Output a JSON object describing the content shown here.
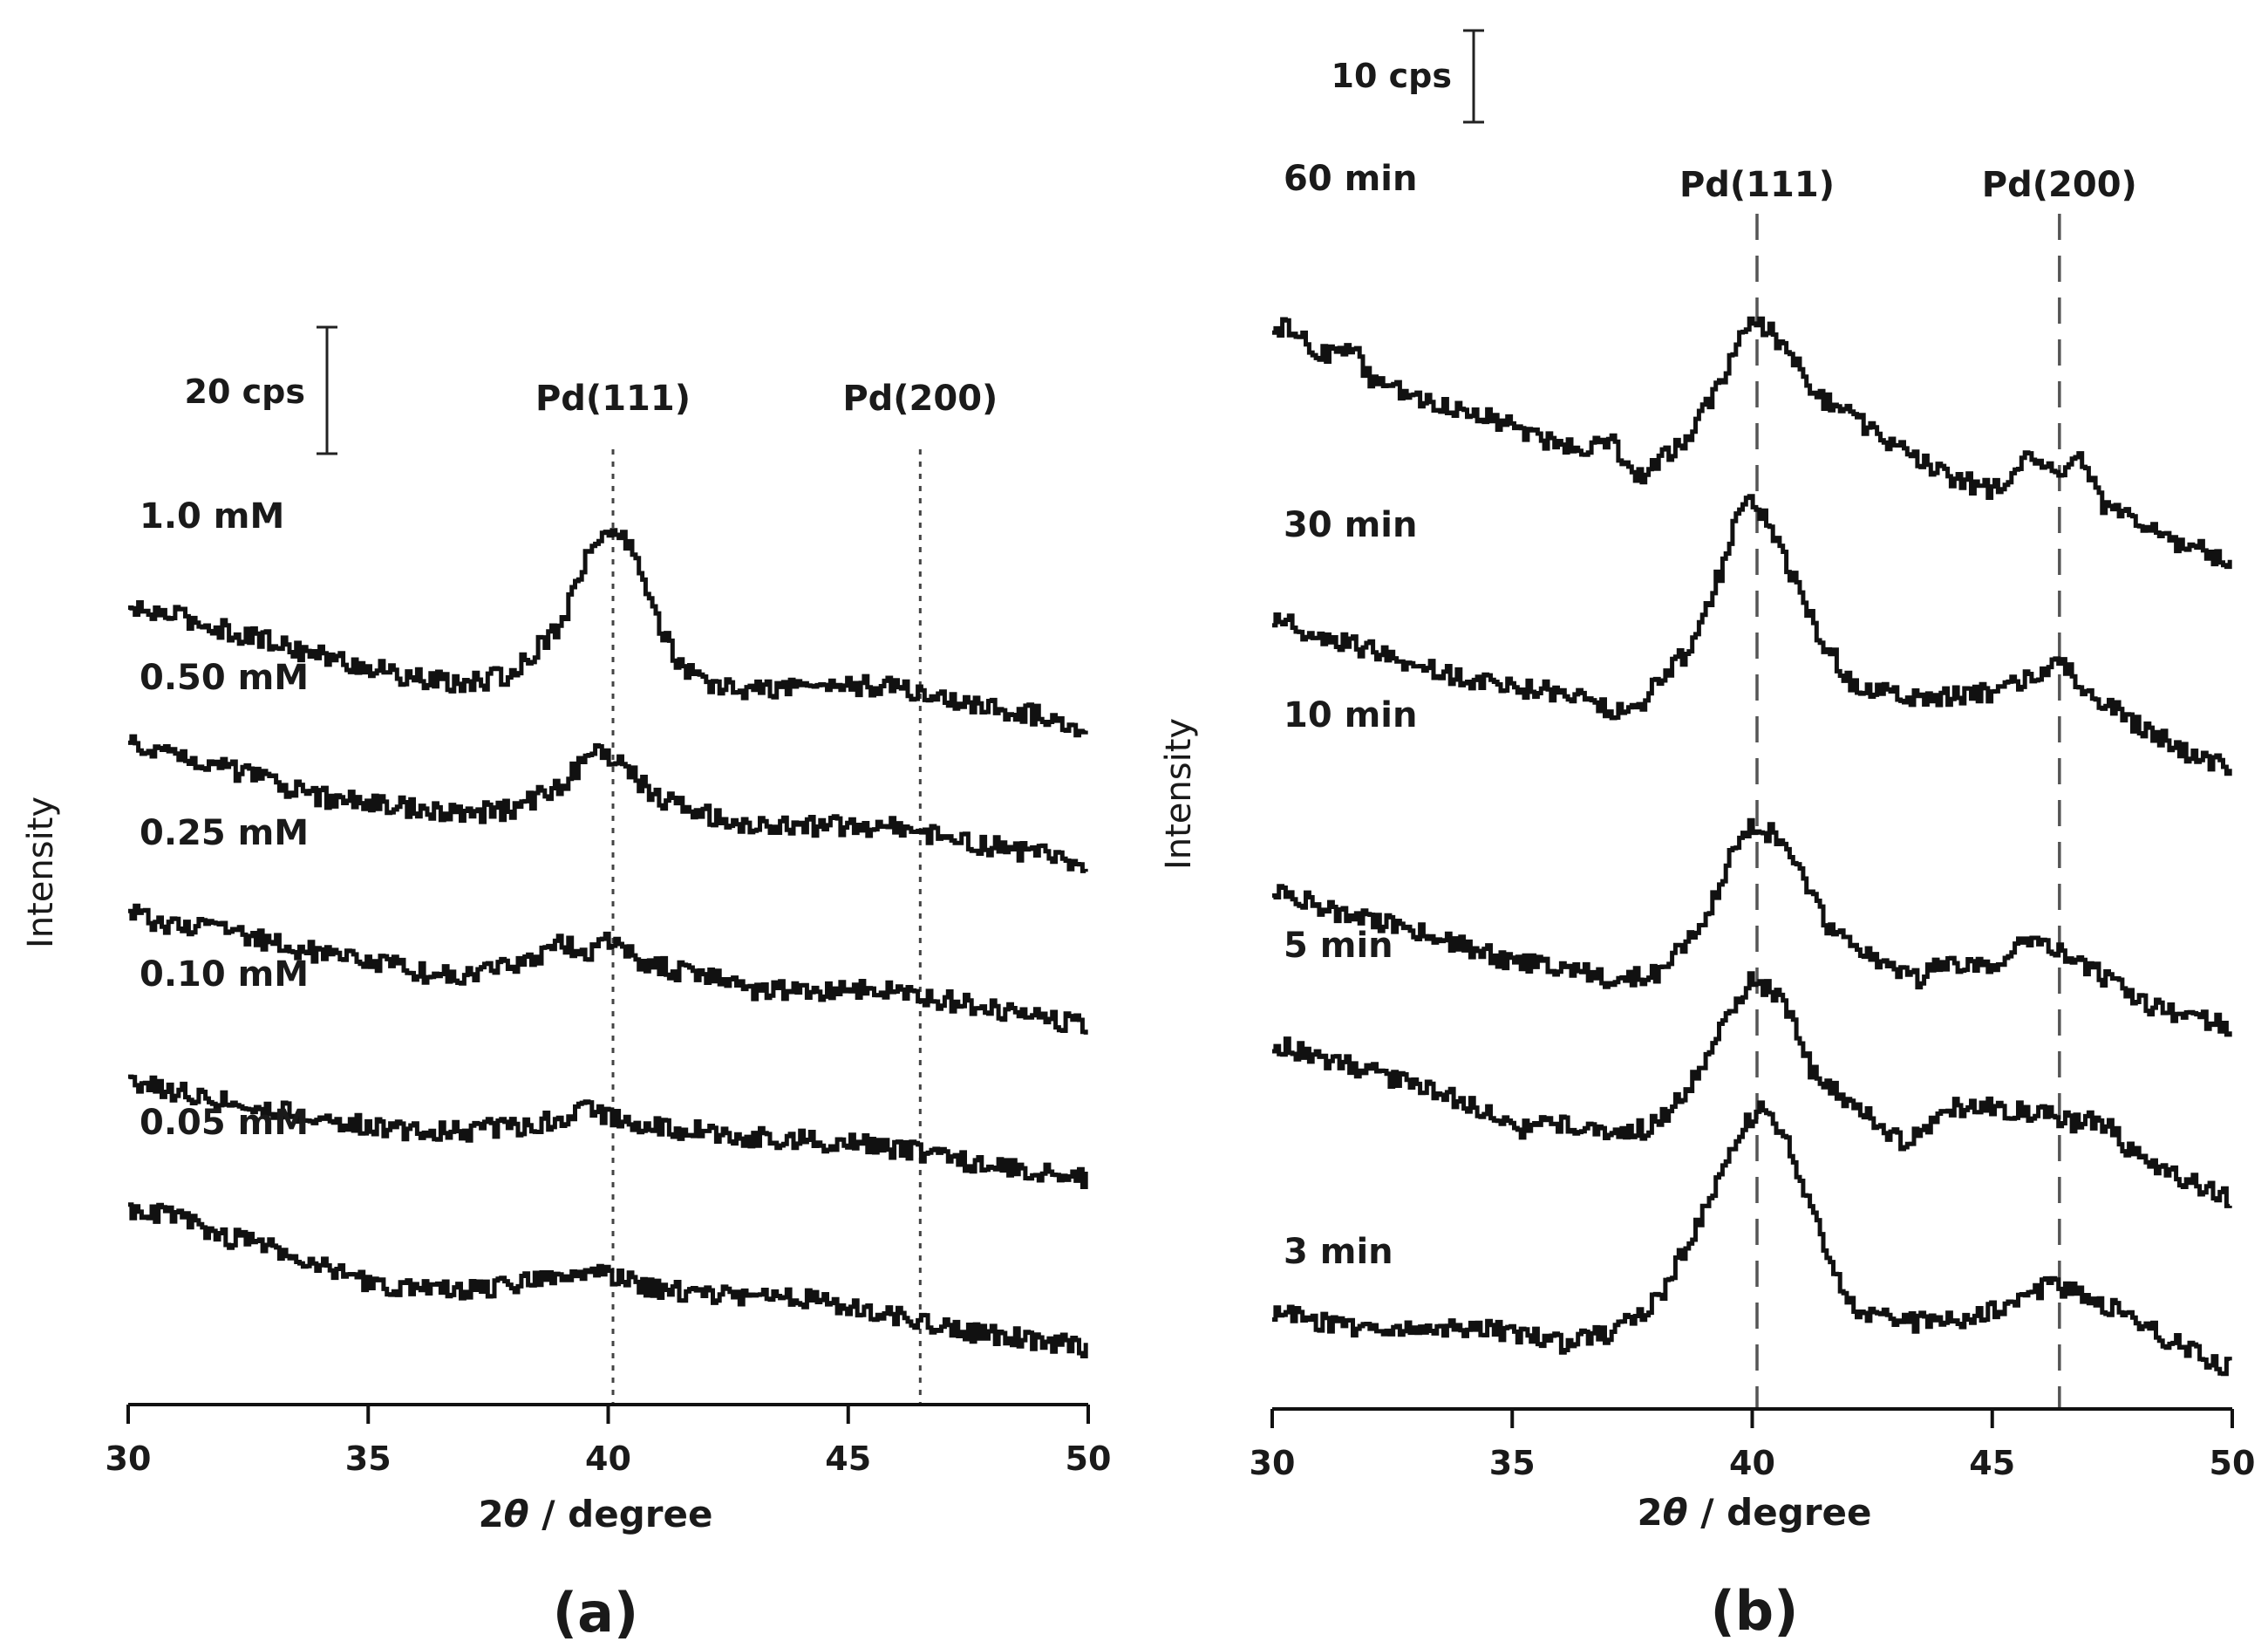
{
  "chart_data": [
    {
      "type": "line",
      "panel": "(a)",
      "xlabel_prefix": "2",
      "xlabel_theta": "θ",
      "xlabel_suffix": " / degree",
      "ylabel": "Intensity",
      "xlim": [
        30,
        50
      ],
      "xticks": [
        30,
        35,
        40,
        45,
        50
      ],
      "scale_bar": "20 cps",
      "reference_lines": [
        {
          "label": "Pd(111)",
          "x": 40.1,
          "style": "dotted"
        },
        {
          "label": "Pd(200)",
          "x": 46.5,
          "style": "dotted"
        }
      ],
      "series": [
        {
          "name": "1.0 mM",
          "baseline": 0,
          "points": [
            [
              30,
              42
            ],
            [
              31,
              40
            ],
            [
              32,
              35
            ],
            [
              33,
              31
            ],
            [
              34,
              26
            ],
            [
              35,
              22
            ],
            [
              36,
              18
            ],
            [
              37,
              16
            ],
            [
              38,
              20
            ],
            [
              39,
              38
            ],
            [
              39.5,
              60
            ],
            [
              40.1,
              71
            ],
            [
              40.6,
              60
            ],
            [
              41,
              38
            ],
            [
              41.5,
              22
            ],
            [
              42,
              16
            ],
            [
              43,
              14
            ],
            [
              44,
              16
            ],
            [
              45,
              16
            ],
            [
              46,
              15
            ],
            [
              47,
              11
            ],
            [
              48,
              8
            ],
            [
              49,
              5
            ],
            [
              50,
              1
            ]
          ]
        },
        {
          "name": "0.50 mM",
          "baseline": 1,
          "points": [
            [
              30,
              48
            ],
            [
              31,
              46
            ],
            [
              32,
              40
            ],
            [
              33,
              35
            ],
            [
              34,
              30
            ],
            [
              35,
              28
            ],
            [
              36,
              26
            ],
            [
              37,
              24
            ],
            [
              38,
              26
            ],
            [
              39,
              34
            ],
            [
              39.7,
              48
            ],
            [
              40.3,
              40
            ],
            [
              41,
              30
            ],
            [
              42,
              24
            ],
            [
              43,
              20
            ],
            [
              44,
              20
            ],
            [
              45,
              20
            ],
            [
              46,
              20
            ],
            [
              47,
              16
            ],
            [
              48,
              13
            ],
            [
              49,
              10
            ],
            [
              50,
              6
            ]
          ]
        },
        {
          "name": "0.25 mM",
          "baseline": 2,
          "points": [
            [
              30,
              44
            ],
            [
              31,
              40
            ],
            [
              32,
              38
            ],
            [
              33,
              34
            ],
            [
              34,
              30
            ],
            [
              35,
              28
            ],
            [
              36,
              24
            ],
            [
              37,
              22
            ],
            [
              38,
              26
            ],
            [
              39,
              34
            ],
            [
              39.5,
              30
            ],
            [
              40,
              36
            ],
            [
              40.6,
              28
            ],
            [
              41,
              26
            ],
            [
              42,
              22
            ],
            [
              43,
              18
            ],
            [
              44,
              17
            ],
            [
              45,
              18
            ],
            [
              46,
              17
            ],
            [
              47,
              14
            ],
            [
              48,
              11
            ],
            [
              49,
              8
            ],
            [
              50,
              5
            ]
          ]
        },
        {
          "name": "0.10 mM",
          "baseline": 3,
          "points": [
            [
              30,
              40
            ],
            [
              31,
              36
            ],
            [
              32,
              33
            ],
            [
              33,
              30
            ],
            [
              34,
              26
            ],
            [
              35,
              24
            ],
            [
              36,
              22
            ],
            [
              37,
              22
            ],
            [
              38,
              24
            ],
            [
              39,
              26
            ],
            [
              39.6,
              30
            ],
            [
              40.2,
              26
            ],
            [
              41,
              24
            ],
            [
              42,
              22
            ],
            [
              43,
              20
            ],
            [
              44,
              19
            ],
            [
              45,
              18
            ],
            [
              46,
              16
            ],
            [
              47,
              13
            ],
            [
              48,
              10
            ],
            [
              49,
              8
            ],
            [
              50,
              5
            ]
          ]
        },
        {
          "name": "0.05 mM",
          "baseline": 4,
          "points": [
            [
              30,
              50
            ],
            [
              31,
              47
            ],
            [
              32,
              40
            ],
            [
              33,
              36
            ],
            [
              34,
              30
            ],
            [
              35,
              24
            ],
            [
              36,
              22
            ],
            [
              37,
              21
            ],
            [
              38,
              24
            ],
            [
              39,
              28
            ],
            [
              40,
              27
            ],
            [
              41,
              22
            ],
            [
              42,
              20
            ],
            [
              43,
              20
            ],
            [
              44,
              19
            ],
            [
              45,
              16
            ],
            [
              46,
              12
            ],
            [
              47,
              8
            ],
            [
              48,
              6
            ],
            [
              49,
              4
            ],
            [
              50,
              1
            ]
          ]
        }
      ]
    },
    {
      "type": "line",
      "panel": "(b)",
      "xlabel_prefix": "2",
      "xlabel_theta": "θ",
      "xlabel_suffix": " / degree",
      "ylabel": "Intensity",
      "xlim": [
        30,
        50
      ],
      "xticks": [
        30,
        35,
        40,
        45,
        50
      ],
      "scale_bar": "10 cps",
      "reference_lines": [
        {
          "label": "Pd(111)",
          "x": 40.1,
          "style": "dashed"
        },
        {
          "label": "Pd(200)",
          "x": 46.4,
          "style": "dashed"
        }
      ],
      "series": [
        {
          "name": "60 min",
          "baseline": 0,
          "points": [
            [
              30,
              112
            ],
            [
              30.5,
              108
            ],
            [
              31,
              100
            ],
            [
              31.6,
              104
            ],
            [
              32,
              92
            ],
            [
              33,
              84
            ],
            [
              34,
              80
            ],
            [
              35,
              74
            ],
            [
              35.8,
              68
            ],
            [
              36.5,
              66
            ],
            [
              37,
              70
            ],
            [
              37.5,
              54
            ],
            [
              38,
              60
            ],
            [
              38.7,
              72
            ],
            [
              39.3,
              90
            ],
            [
              39.8,
              112
            ],
            [
              40.3,
              110
            ],
            [
              40.8,
              100
            ],
            [
              41.3,
              86
            ],
            [
              42,
              78
            ],
            [
              43,
              66
            ],
            [
              44,
              56
            ],
            [
              45,
              50
            ],
            [
              45.6,
              62
            ],
            [
              46.3,
              56
            ],
            [
              46.8,
              62
            ],
            [
              47.3,
              44
            ],
            [
              48,
              38
            ],
            [
              49,
              30
            ],
            [
              50,
              24
            ]
          ]
        },
        {
          "name": "30 min",
          "baseline": 1,
          "points": [
            [
              30,
              64
            ],
            [
              31,
              56
            ],
            [
              32,
              52
            ],
            [
              33,
              46
            ],
            [
              34,
              40
            ],
            [
              35,
              38
            ],
            [
              36,
              36
            ],
            [
              37,
              30
            ],
            [
              37.5,
              28
            ],
            [
              38,
              40
            ],
            [
              38.7,
              52
            ],
            [
              39.3,
              80
            ],
            [
              39.8,
              108
            ],
            [
              40.3,
              100
            ],
            [
              40.8,
              80
            ],
            [
              41.4,
              56
            ],
            [
              42,
              40
            ],
            [
              43,
              34
            ],
            [
              44,
              34
            ],
            [
              45,
              36
            ],
            [
              45.8,
              42
            ],
            [
              46.4,
              46
            ],
            [
              47,
              36
            ],
            [
              48,
              24
            ],
            [
              49,
              14
            ],
            [
              50,
              8
            ]
          ]
        },
        {
          "name": "10 min",
          "baseline": 2,
          "points": [
            [
              30,
              64
            ],
            [
              31,
              56
            ],
            [
              32,
              52
            ],
            [
              33,
              48
            ],
            [
              34,
              42
            ],
            [
              35,
              36
            ],
            [
              36,
              34
            ],
            [
              37,
              30
            ],
            [
              38,
              32
            ],
            [
              39,
              52
            ],
            [
              39.8,
              86
            ],
            [
              40.4,
              84
            ],
            [
              41,
              70
            ],
            [
              41.6,
              48
            ],
            [
              42.5,
              38
            ],
            [
              43.4,
              30
            ],
            [
              44,
              36
            ],
            [
              45,
              36
            ],
            [
              45.8,
              44
            ],
            [
              46.4,
              40
            ],
            [
              47,
              34
            ],
            [
              48,
              22
            ],
            [
              49,
              16
            ],
            [
              50,
              12
            ]
          ]
        },
        {
          "name": "5 min",
          "baseline": 3,
          "points": [
            [
              30,
              66
            ],
            [
              31,
              60
            ],
            [
              32,
              56
            ],
            [
              33,
              50
            ],
            [
              34,
              44
            ],
            [
              35,
              34
            ],
            [
              36,
              36
            ],
            [
              37,
              34
            ],
            [
              37.8,
              34
            ],
            [
              38.5,
              46
            ],
            [
              39.3,
              70
            ],
            [
              40,
              90
            ],
            [
              40.6,
              82
            ],
            [
              41.2,
              56
            ],
            [
              42,
              44
            ],
            [
              43.2,
              28
            ],
            [
              44,
              42
            ],
            [
              45,
              42
            ],
            [
              46,
              40
            ],
            [
              46.7,
              36
            ],
            [
              47.2,
              38
            ],
            [
              48,
              24
            ],
            [
              49,
              16
            ],
            [
              50,
              8
            ]
          ]
        },
        {
          "name": "3 min",
          "baseline": 4,
          "points": [
            [
              30,
              28
            ],
            [
              31,
              24
            ],
            [
              32,
              22
            ],
            [
              33,
              22
            ],
            [
              34,
              22
            ],
            [
              35,
              20
            ],
            [
              36,
              16
            ],
            [
              37,
              20
            ],
            [
              38,
              32
            ],
            [
              38.8,
              58
            ],
            [
              39.5,
              88
            ],
            [
              40.1,
              104
            ],
            [
              40.7,
              90
            ],
            [
              41.3,
              60
            ],
            [
              42,
              30
            ],
            [
              43,
              24
            ],
            [
              44,
              24
            ],
            [
              45,
              28
            ],
            [
              45.6,
              32
            ],
            [
              46.2,
              38
            ],
            [
              47,
              34
            ],
            [
              48,
              24
            ],
            [
              49,
              14
            ],
            [
              50,
              6
            ]
          ]
        }
      ]
    }
  ]
}
